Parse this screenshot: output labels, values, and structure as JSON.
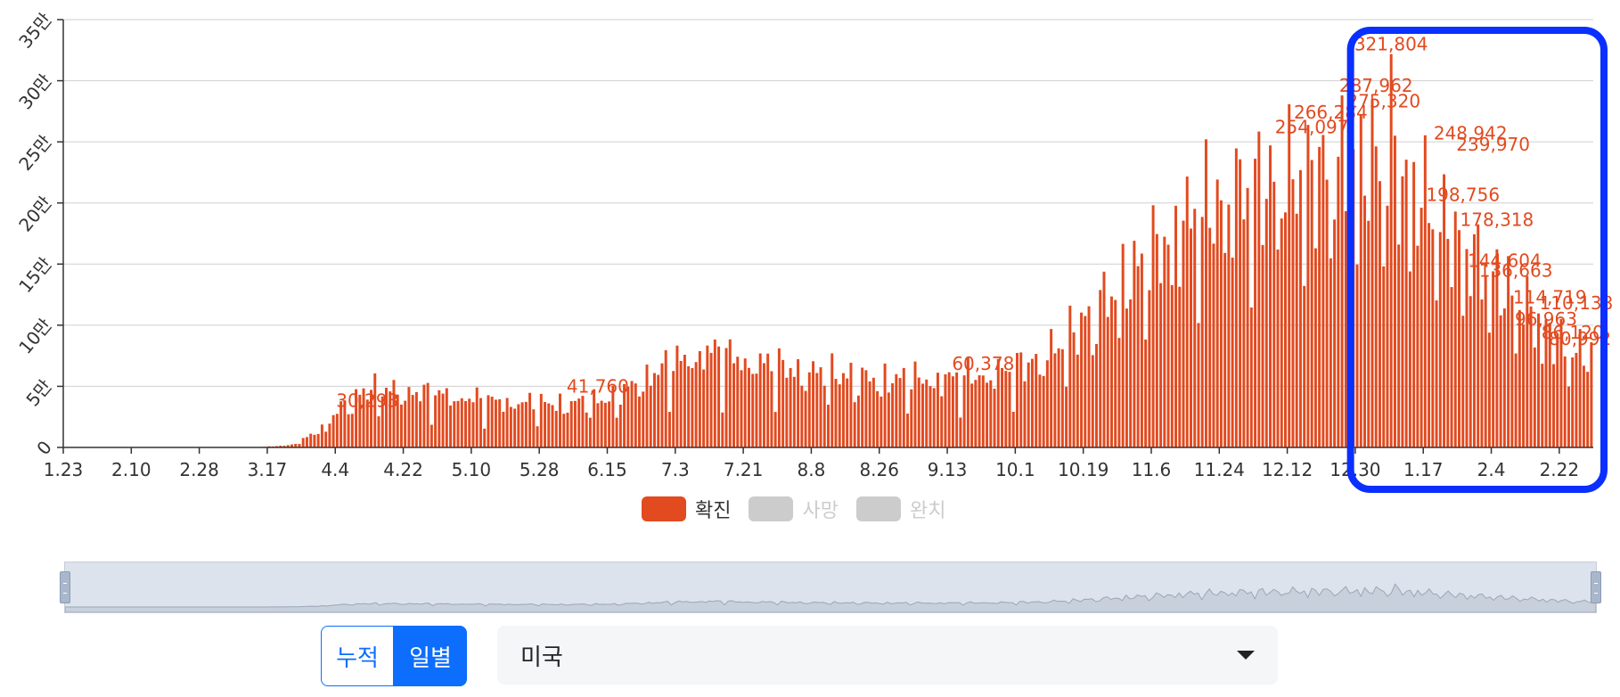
{
  "chart_data": {
    "type": "bar",
    "ylim": [
      0,
      350000
    ],
    "yticks": [
      {
        "value": 0,
        "label": "0"
      },
      {
        "value": 50000,
        "label": "5만"
      },
      {
        "value": 100000,
        "label": "10만"
      },
      {
        "value": 150000,
        "label": "15만"
      },
      {
        "value": 200000,
        "label": "20만"
      },
      {
        "value": 250000,
        "label": "25만"
      },
      {
        "value": 300000,
        "label": "30만"
      },
      {
        "value": 350000,
        "label": "35만"
      }
    ],
    "xticks": [
      "1.23",
      "2.10",
      "2.28",
      "3.17",
      "4.4",
      "4.22",
      "5.10",
      "5.28",
      "6.15",
      "7.3",
      "7.21",
      "8.8",
      "8.26",
      "9.13",
      "10.1",
      "10.19",
      "11.6",
      "11.24",
      "12.12",
      "12.30",
      "1.17",
      "2.4",
      "2.22"
    ],
    "day_count": 405,
    "anchors": [
      [
        0,
        1
      ],
      [
        40,
        10
      ],
      [
        50,
        50
      ],
      [
        60,
        2000
      ],
      [
        68,
        15000
      ],
      [
        72,
        30000
      ],
      [
        76,
        40000
      ],
      [
        80,
        48000
      ],
      [
        95,
        45000
      ],
      [
        115,
        38000
      ],
      [
        130,
        36000
      ],
      [
        145,
        40000
      ],
      [
        152,
        55000
      ],
      [
        160,
        68000
      ],
      [
        170,
        80000
      ],
      [
        180,
        72000
      ],
      [
        195,
        63000
      ],
      [
        215,
        56000
      ],
      [
        235,
        57000
      ],
      [
        250,
        63000
      ],
      [
        262,
        80000
      ],
      [
        275,
        120000
      ],
      [
        288,
        160000
      ],
      [
        300,
        195000
      ],
      [
        315,
        215000
      ],
      [
        330,
        225000
      ],
      [
        348,
        235000
      ],
      [
        358,
        210000
      ],
      [
        368,
        170000
      ],
      [
        378,
        140000
      ],
      [
        388,
        110000
      ],
      [
        398,
        80000
      ],
      [
        404,
        75000
      ]
    ],
    "series": [
      {
        "name": "확진",
        "color": "#e24a1f",
        "peak": 321804,
        "peak_index": 351
      }
    ],
    "annotations": [
      "321,804",
      "287,962",
      "275,320",
      "266,284",
      "254,097",
      "248,942",
      "239,970",
      "198,756",
      "178,318",
      "144,604",
      "136,663",
      "114,719",
      "110,138",
      "96,963",
      "86,120",
      "80,992",
      "60,378",
      "41,760",
      "30,293"
    ],
    "legend": [
      {
        "label": "확진",
        "color": "#e24a1f",
        "active": true
      },
      {
        "label": "사망",
        "color": "#cccccc",
        "active": false
      },
      {
        "label": "완치",
        "color": "#cccccc",
        "active": false
      }
    ],
    "highlight": {
      "color": "#0a2fff",
      "from_index": 345,
      "to_index": 405
    }
  },
  "controls": {
    "cumulative_label": "누적",
    "daily_label": "일별",
    "country_selected": "미국"
  }
}
